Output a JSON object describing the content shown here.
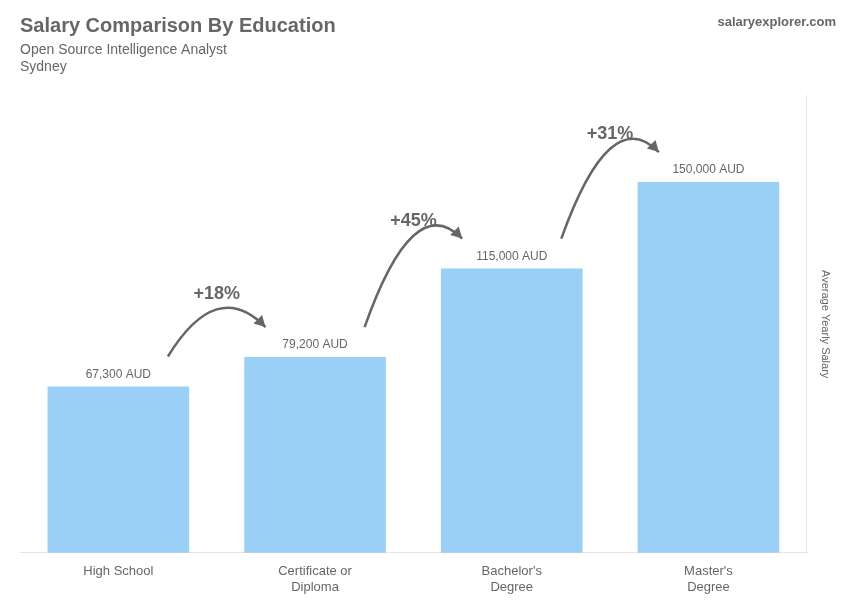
{
  "chart_data": {
    "type": "bar",
    "title": "Salary Comparison By Education",
    "subtitle": "Open Source Intelligence Analyst",
    "ylabel": "Average Yearly Salary",
    "categories": [
      "High School",
      "Certificate or\nDiploma",
      "Bachelor's\nDegree",
      "Master's\nDegree"
    ],
    "values": [
      67300,
      79200,
      115000,
      150000
    ],
    "value_labels": [
      "67,300 AUD",
      "79,200 AUD",
      "115,000 AUD",
      "150,000 AUD"
    ],
    "data_labels": true,
    "ylim": [
      0,
      185000
    ],
    "grid": false,
    "tick_labels": "x",
    "annotations": [
      {
        "text": "Sydney"
      },
      {
        "text": "salaryexplorer.com"
      },
      {
        "text": "+18%",
        "from": "High School",
        "to": "Certificate or\nDiploma"
      },
      {
        "text": "+45%",
        "from": "Certificate or\nDiploma",
        "to": "Bachelor's\nDegree"
      },
      {
        "text": "+31%",
        "from": "Bachelor's\nDegree",
        "to": "Master's\nDegree"
      }
    ]
  }
}
